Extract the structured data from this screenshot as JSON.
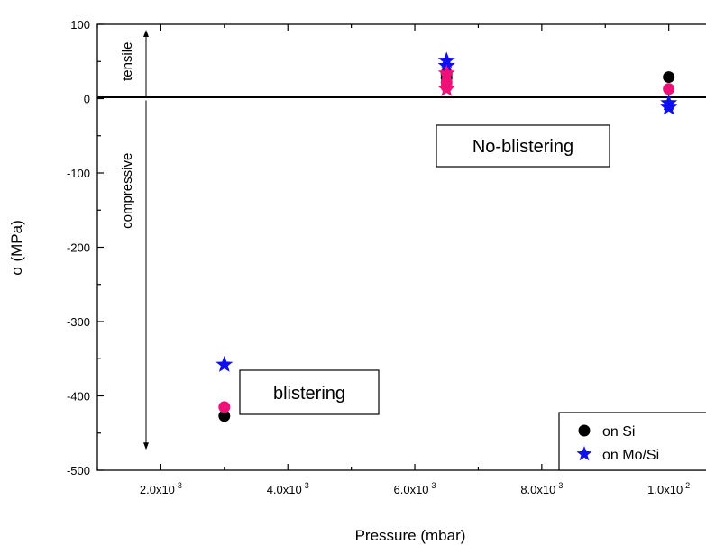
{
  "chart_data": {
    "type": "scatter",
    "xlabel": "Pressure (mbar)",
    "ylabel": "σ (MPa)",
    "xlim": [
      0.001,
      0.0108
    ],
    "ylim": [
      -500,
      100
    ],
    "x_ticks": [
      0.002,
      0.004,
      0.006,
      0.008,
      0.01
    ],
    "x_tick_labels": [
      {
        "mantissa": "2.0x10",
        "exp": "-3"
      },
      {
        "mantissa": "4.0x10",
        "exp": "-3"
      },
      {
        "mantissa": "6.0x10",
        "exp": "-3"
      },
      {
        "mantissa": "8.0x10",
        "exp": "-3"
      },
      {
        "mantissa": "1.0x10",
        "exp": "-2"
      }
    ],
    "y_ticks": [
      100,
      0,
      -100,
      -200,
      -300,
      -400,
      -500
    ],
    "y_tick_labels": [
      "100",
      "0",
      "-100",
      "-200",
      "-300",
      "-400",
      "-500"
    ],
    "grid": false,
    "zero_line": true,
    "series": [
      {
        "name": "on Si",
        "marker": "circle",
        "color": "#000000",
        "points": [
          [
            0.003,
            -427
          ],
          [
            0.0065,
            33
          ],
          [
            0.0065,
            28
          ],
          [
            0.01,
            29
          ]
        ]
      },
      {
        "name": "",
        "marker": "circle",
        "color": "#ee1177",
        "points": [
          [
            0.003,
            -415
          ],
          [
            0.0065,
            35
          ],
          [
            0.0065,
            22
          ],
          [
            0.0065,
            16
          ],
          [
            0.01,
            13
          ]
        ]
      },
      {
        "name": "on Mo/Si",
        "marker": "star",
        "color": "#1010ee",
        "points": [
          [
            0.003,
            -358
          ],
          [
            0.0065,
            51
          ],
          [
            0.0065,
            44
          ],
          [
            0.01,
            -6
          ],
          [
            0.01,
            -12
          ]
        ]
      },
      {
        "name": "",
        "marker": "star",
        "color": "#ee1177",
        "points": [
          [
            0.0065,
            34
          ],
          [
            0.0065,
            13
          ]
        ]
      }
    ],
    "annotations": {
      "tensile": "tensile",
      "compressive": "compressive",
      "no_blistering": "No-blistering",
      "blistering": "blistering"
    },
    "legend": {
      "position": "bottom-right",
      "entries": [
        {
          "label": "on Si",
          "marker": "circle",
          "color": "#000000"
        },
        {
          "label": "on Mo/Si",
          "marker": "star",
          "color": "#1010ee"
        }
      ]
    }
  }
}
